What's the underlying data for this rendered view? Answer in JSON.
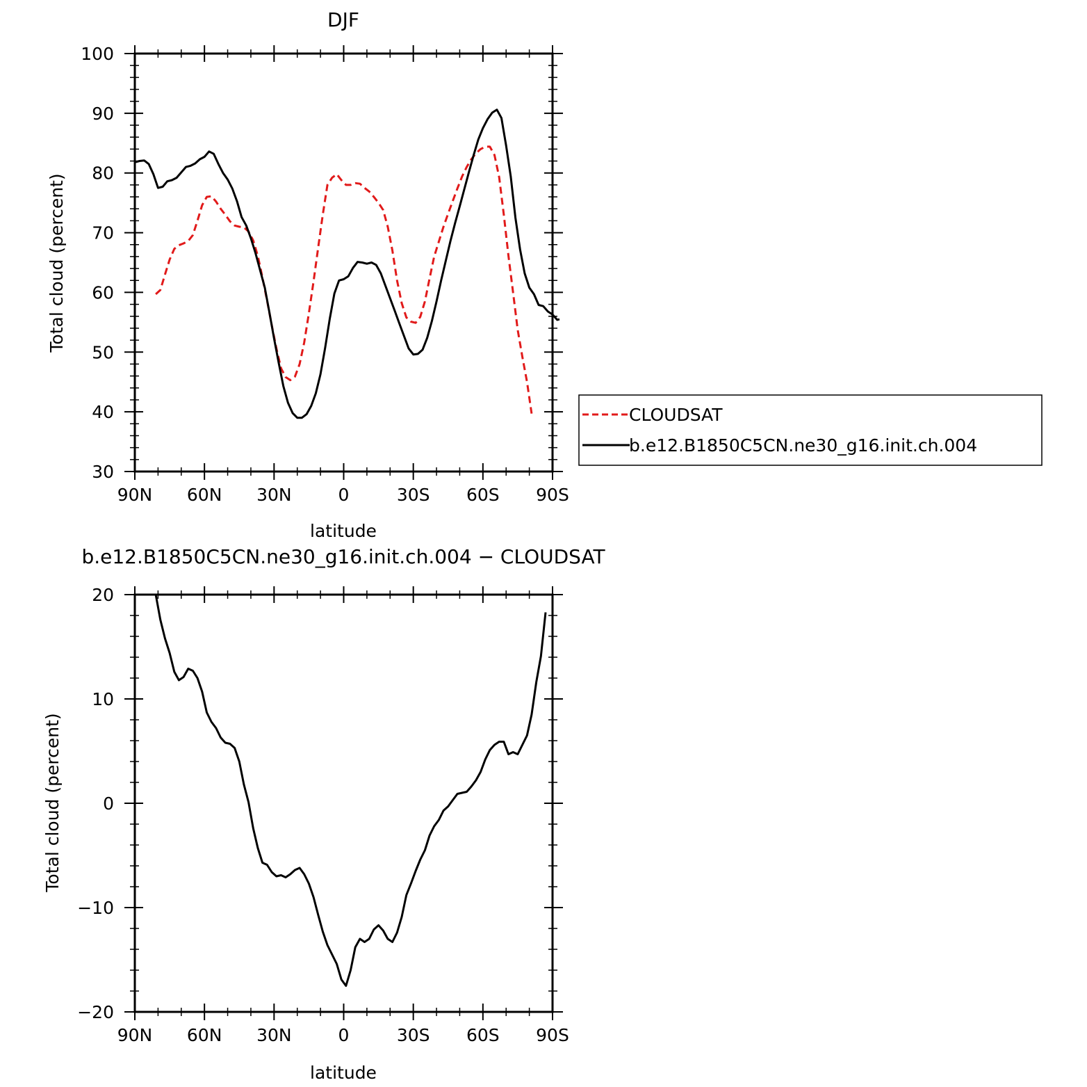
{
  "chart_data": [
    {
      "type": "line",
      "title": "DJF",
      "xlabel": "latitude",
      "ylabel": "Total cloud (percent)",
      "xlim": [
        -90,
        90
      ],
      "ylim": [
        30,
        100
      ],
      "x_ticks": [
        -90,
        -60,
        -30,
        0,
        30,
        60,
        90
      ],
      "x_tick_labels": [
        "90N",
        "60N",
        "30N",
        "0",
        "30S",
        "60S",
        "90S"
      ],
      "y_ticks": [
        30,
        40,
        50,
        60,
        70,
        80,
        90,
        100
      ],
      "y_tick_labels": [
        "30",
        "40",
        "50",
        "60",
        "70",
        "80",
        "90",
        "100"
      ],
      "grid": false,
      "legend": "right-bottom",
      "series": [
        {
          "name": "CLOUDSAT",
          "color": "#e11a1a",
          "dash": "dashed",
          "points": [
            [
              -81,
              59.7
            ],
            [
              -79,
              60.4
            ],
            [
              -77,
              63
            ],
            [
              -75,
              65.5
            ],
            [
              -73,
              67.3
            ],
            [
              -71,
              67.9
            ],
            [
              -69,
              68.2
            ],
            [
              -67,
              68.6
            ],
            [
              -65,
              69.6
            ],
            [
              -63,
              72
            ],
            [
              -61,
              74.6
            ],
            [
              -59,
              76
            ],
            [
              -57,
              76.1
            ],
            [
              -55,
              75.2
            ],
            [
              -53,
              74
            ],
            [
              -51,
              73
            ],
            [
              -49,
              71.9
            ],
            [
              -47,
              71.2
            ],
            [
              -45,
              71
            ],
            [
              -43,
              70.9
            ],
            [
              -41,
              70.2
            ],
            [
              -39,
              68.7
            ],
            [
              -37,
              66.1
            ],
            [
              -35,
              62.5
            ],
            [
              -33,
              58.6
            ],
            [
              -31,
              54.5
            ],
            [
              -29,
              50.6
            ],
            [
              -27,
              47.3
            ],
            [
              -25,
              45.8
            ],
            [
              -23,
              45.3
            ],
            [
              -21,
              45.9
            ],
            [
              -19,
              48
            ],
            [
              -17,
              51.6
            ],
            [
              -15,
              56.5
            ],
            [
              -13,
              61.8
            ],
            [
              -11,
              67.5
            ],
            [
              -9,
              73
            ],
            [
              -7,
              78
            ],
            [
              -5,
              79.2
            ],
            [
              -3,
              79.8
            ],
            [
              -1,
              78.8
            ],
            [
              1,
              78
            ],
            [
              3,
              78
            ],
            [
              5,
              78.3
            ],
            [
              7,
              78.2
            ],
            [
              9,
              77.5
            ],
            [
              11,
              76.9
            ],
            [
              13,
              76
            ],
            [
              15,
              75
            ],
            [
              17,
              73.8
            ],
            [
              19,
              71
            ],
            [
              21,
              67
            ],
            [
              23,
              62
            ],
            [
              25,
              58.2
            ],
            [
              27,
              55.8
            ],
            [
              29,
              55.1
            ],
            [
              31,
              54.9
            ],
            [
              33,
              55.9
            ],
            [
              35,
              58.5
            ],
            [
              37,
              62.3
            ],
            [
              39,
              66
            ],
            [
              41,
              68.5
            ],
            [
              43,
              71
            ],
            [
              45,
              73.2
            ],
            [
              47,
              75.3
            ],
            [
              49,
              77.4
            ],
            [
              51,
              79.4
            ],
            [
              53,
              81
            ],
            [
              55,
              82.3
            ],
            [
              57,
              83.3
            ],
            [
              59,
              84
            ],
            [
              61,
              84.4
            ],
            [
              63,
              84.4
            ],
            [
              65,
              83
            ],
            [
              67,
              79.3
            ],
            [
              69,
              73
            ],
            [
              71,
              66.1
            ],
            [
              73,
              60
            ],
            [
              75,
              53.7
            ],
            [
              77,
              49.2
            ],
            [
              79,
              45
            ],
            [
              81,
              39.7
            ]
          ]
        },
        {
          "name": "b.e12.B1850C5CN.ne30_g16.init.ch.004",
          "color": "#000000",
          "dash": "solid",
          "points": [
            [
              -90,
              81.8
            ],
            [
              -88,
              82
            ],
            [
              -86,
              82.1
            ],
            [
              -84,
              81.5
            ],
            [
              -82,
              79.8
            ],
            [
              -80,
              77.5
            ],
            [
              -78,
              77.7
            ],
            [
              -76,
              78.6
            ],
            [
              -74,
              78.8
            ],
            [
              -72,
              79.2
            ],
            [
              -70,
              80.1
            ],
            [
              -68,
              81
            ],
            [
              -66,
              81.2
            ],
            [
              -64,
              81.6
            ],
            [
              -62,
              82.3
            ],
            [
              -60,
              82.7
            ],
            [
              -58,
              83.6
            ],
            [
              -56,
              83.2
            ],
            [
              -54,
              81.5
            ],
            [
              -52,
              80
            ],
            [
              -50,
              78.9
            ],
            [
              -48,
              77.4
            ],
            [
              -46,
              75.3
            ],
            [
              -44,
              72.6
            ],
            [
              -42,
              71.2
            ],
            [
              -40,
              69.1
            ],
            [
              -38,
              66.6
            ],
            [
              -36,
              63.7
            ],
            [
              -34,
              60.8
            ],
            [
              -32,
              56.6
            ],
            [
              -30,
              52.3
            ],
            [
              -28,
              48.2
            ],
            [
              -26,
              44.3
            ],
            [
              -24,
              41.5
            ],
            [
              -22,
              39.8
            ],
            [
              -20,
              39
            ],
            [
              -18,
              39
            ],
            [
              -16,
              39.6
            ],
            [
              -14,
              41
            ],
            [
              -12,
              43.1
            ],
            [
              -10,
              46.3
            ],
            [
              -8,
              50.7
            ],
            [
              -6,
              55.6
            ],
            [
              -4,
              59.8
            ],
            [
              -2,
              62
            ],
            [
              0,
              62.2
            ],
            [
              2,
              62.7
            ],
            [
              4,
              64.1
            ],
            [
              6,
              65.1
            ],
            [
              8,
              65
            ],
            [
              10,
              64.8
            ],
            [
              12,
              65
            ],
            [
              14,
              64.6
            ],
            [
              16,
              63.2
            ],
            [
              18,
              61.1
            ],
            [
              20,
              59
            ],
            [
              22,
              56.9
            ],
            [
              24,
              54.8
            ],
            [
              26,
              52.7
            ],
            [
              28,
              50.6
            ],
            [
              30,
              49.6
            ],
            [
              32,
              49.7
            ],
            [
              34,
              50.4
            ],
            [
              36,
              52.4
            ],
            [
              38,
              55.2
            ],
            [
              40,
              58.5
            ],
            [
              42,
              62
            ],
            [
              44,
              65.3
            ],
            [
              46,
              68.6
            ],
            [
              48,
              71.6
            ],
            [
              50,
              74.4
            ],
            [
              52,
              77.3
            ],
            [
              54,
              80.2
            ],
            [
              56,
              83
            ],
            [
              58,
              85.6
            ],
            [
              60,
              87.5
            ],
            [
              62,
              89
            ],
            [
              64,
              90.1
            ],
            [
              66,
              90.6
            ],
            [
              68,
              89.2
            ],
            [
              70,
              84.6
            ],
            [
              72,
              79.4
            ],
            [
              74,
              72.5
            ],
            [
              76,
              67.2
            ],
            [
              78,
              63.2
            ],
            [
              80,
              60.8
            ],
            [
              82,
              59.7
            ],
            [
              84,
              57.9
            ],
            [
              86,
              57.7
            ],
            [
              88,
              56.8
            ],
            [
              90,
              56.3
            ],
            [
              92,
              55.4
            ],
            [
              93,
              55.5
            ]
          ]
        }
      ]
    },
    {
      "type": "line",
      "title": "b.e12.B1850C5CN.ne30_g16.init.ch.004 − CLOUDSAT",
      "xlabel": "latitude",
      "ylabel": "Total cloud (percent)",
      "xlim": [
        -90,
        90
      ],
      "ylim": [
        -20,
        20
      ],
      "x_ticks": [
        -90,
        -60,
        -30,
        0,
        30,
        60,
        90
      ],
      "x_tick_labels": [
        "90N",
        "60N",
        "30N",
        "0",
        "30S",
        "60S",
        "90S"
      ],
      "y_ticks": [
        -20,
        -10,
        0,
        10,
        20
      ],
      "y_tick_labels": [
        "−20",
        "−10",
        "0",
        "10",
        "20"
      ],
      "grid": false,
      "series": [
        {
          "color": "#000000",
          "dash": "solid",
          "points": [
            [
              -81,
              20
            ],
            [
              -79,
              17.6
            ],
            [
              -77,
              15.8
            ],
            [
              -75,
              14.4
            ],
            [
              -73,
              12.6
            ],
            [
              -71,
              11.8
            ],
            [
              -69,
              12.1
            ],
            [
              -67,
              12.9
            ],
            [
              -65,
              12.7
            ],
            [
              -63,
              12
            ],
            [
              -61,
              10.7
            ],
            [
              -59,
              8.7
            ],
            [
              -57,
              7.8
            ],
            [
              -55,
              7.2
            ],
            [
              -53,
              6.3
            ],
            [
              -51,
              5.8
            ],
            [
              -49,
              5.7
            ],
            [
              -47,
              5.3
            ],
            [
              -45,
              4
            ],
            [
              -43,
              1.8
            ],
            [
              -41,
              0.1
            ],
            [
              -39,
              -2.4
            ],
            [
              -37,
              -4.3
            ],
            [
              -35,
              -5.7
            ],
            [
              -33,
              -5.9
            ],
            [
              -31,
              -6.6
            ],
            [
              -29,
              -7
            ],
            [
              -27,
              -6.9
            ],
            [
              -25,
              -7.1
            ],
            [
              -23,
              -6.8
            ],
            [
              -21,
              -6.4
            ],
            [
              -19,
              -6.2
            ],
            [
              -17,
              -6.8
            ],
            [
              -15,
              -7.7
            ],
            [
              -13,
              -9
            ],
            [
              -11,
              -10.7
            ],
            [
              -9,
              -12.3
            ],
            [
              -7,
              -13.6
            ],
            [
              -5,
              -14.5
            ],
            [
              -3,
              -15.4
            ],
            [
              -1,
              -16.9
            ],
            [
              1,
              -17.5
            ],
            [
              3,
              -16
            ],
            [
              5,
              -13.8
            ],
            [
              7,
              -13
            ],
            [
              9,
              -13.3
            ],
            [
              11,
              -13
            ],
            [
              13,
              -12.1
            ],
            [
              15,
              -11.7
            ],
            [
              17,
              -12.2
            ],
            [
              19,
              -13
            ],
            [
              21,
              -13.3
            ],
            [
              23,
              -12.4
            ],
            [
              25,
              -10.9
            ],
            [
              27,
              -8.8
            ],
            [
              29,
              -7.7
            ],
            [
              31,
              -6.5
            ],
            [
              33,
              -5.4
            ],
            [
              35,
              -4.5
            ],
            [
              37,
              -3.1
            ],
            [
              39,
              -2.2
            ],
            [
              41,
              -1.6
            ],
            [
              43,
              -0.7
            ],
            [
              45,
              -0.3
            ],
            [
              47,
              0.3
            ],
            [
              49,
              0.9
            ],
            [
              51,
              1
            ],
            [
              53,
              1.1
            ],
            [
              55,
              1.6
            ],
            [
              57,
              2.2
            ],
            [
              59,
              3
            ],
            [
              61,
              4.2
            ],
            [
              63,
              5.1
            ],
            [
              65,
              5.6
            ],
            [
              67,
              5.9
            ],
            [
              69,
              5.9
            ],
            [
              71,
              4.7
            ],
            [
              73,
              4.9
            ],
            [
              75,
              4.7
            ],
            [
              77,
              5.6
            ],
            [
              79,
              6.5
            ],
            [
              81,
              8.5
            ],
            [
              83,
              11.6
            ],
            [
              85,
              14.1
            ],
            [
              87,
              18.3
            ]
          ]
        }
      ]
    }
  ]
}
